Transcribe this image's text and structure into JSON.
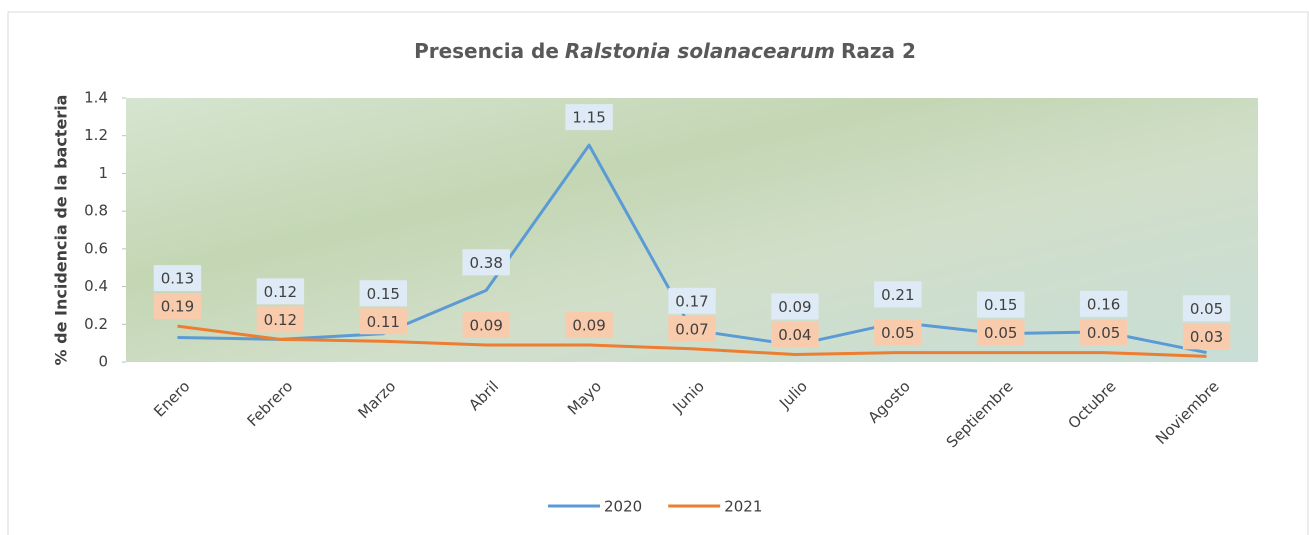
{
  "chart_data": {
    "type": "line",
    "title": [
      "Presencia de",
      "Ralstonia solanacearum",
      "Raza 2"
    ],
    "y_label": "% de Incidencia de la bacteria",
    "categories": [
      "Enero",
      "Febrero",
      "Marzo",
      "Abril",
      "Mayo",
      "Junio",
      "Julio",
      "Agosto",
      "Septiembre",
      "Octubre",
      "Noviembre"
    ],
    "series": [
      {
        "name": "2020",
        "color": "#5b9bd5",
        "label_bg": "#deebf7",
        "values": [
          0.13,
          0.12,
          0.15,
          0.38,
          1.15,
          0.17,
          0.09,
          0.21,
          0.15,
          0.16,
          0.05
        ]
      },
      {
        "name": "2021",
        "color": "#ed7d31",
        "label_bg": "#f8cbad",
        "values": [
          0.19,
          0.12,
          0.11,
          0.09,
          0.09,
          0.07,
          0.04,
          0.05,
          0.05,
          0.05,
          0.03
        ]
      }
    ],
    "ylim": [
      0,
      1.4
    ],
    "yticks": [
      0,
      0.2,
      0.4,
      0.6,
      0.8,
      1,
      1.2,
      1.4
    ],
    "legend": "bottom"
  }
}
